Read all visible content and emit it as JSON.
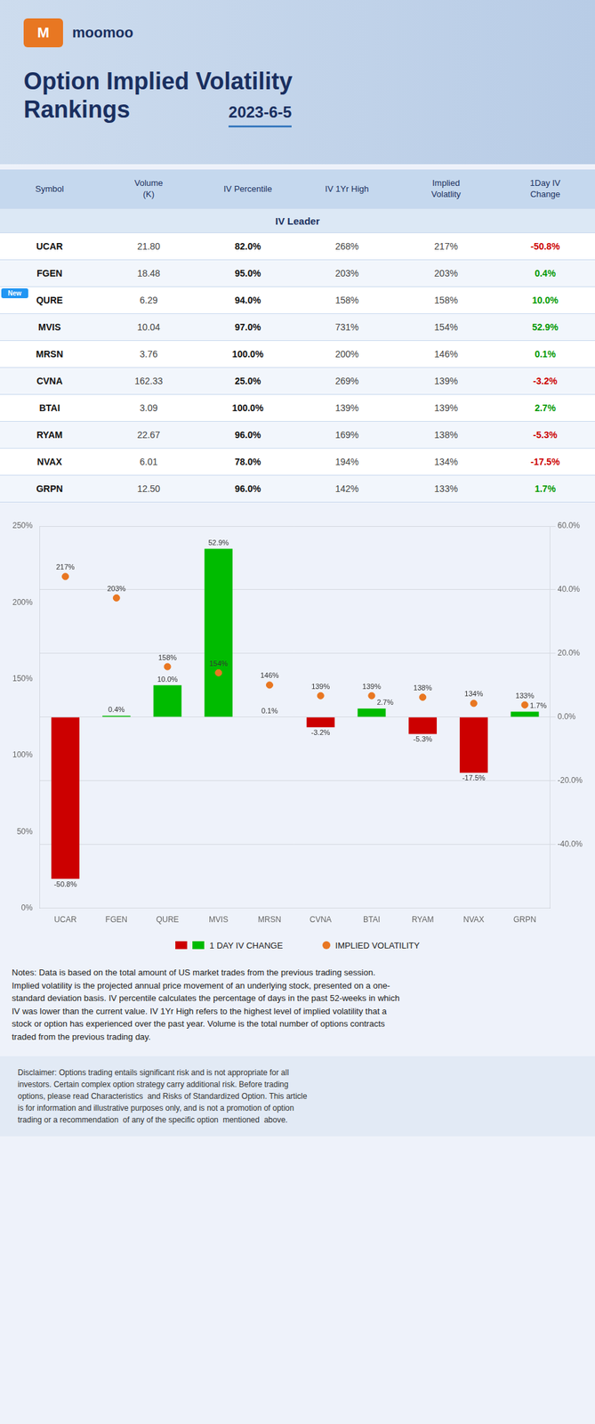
{
  "background": "#eef2fa",
  "header": {
    "logo_mark": "M",
    "brand": "moomoo",
    "title_line1": "Option Implied Volatility",
    "title_line2": "Rankings",
    "date": "2023-6-5"
  },
  "table": {
    "columns": [
      "Symbol",
      "Volume\n(K)",
      "IV Percentile",
      "IV 1Yr High",
      "Implied\nVolatlity",
      "1Day IV\nChange"
    ],
    "header_color": "#c5d8ee",
    "section_label": "IV Leader",
    "new_badge": "New",
    "positive_color": "#009900",
    "negative_color": "#cc0000",
    "rows": [
      {
        "symbol": "UCAR",
        "volume": "21.80",
        "iv_pct": "82.0%",
        "iv_1yr": "268%",
        "implied_vol": "217%",
        "change": "-50.8%",
        "change_val": -50.8,
        "row_bg": "#ffffff",
        "is_new": false
      },
      {
        "symbol": "FGEN",
        "volume": "18.48",
        "iv_pct": "95.0%",
        "iv_1yr": "203%",
        "implied_vol": "203%",
        "change": "0.4%",
        "change_val": 0.4,
        "row_bg": "#f2f6fc",
        "is_new": false
      },
      {
        "symbol": "QURE",
        "volume": "6.29",
        "iv_pct": "94.0%",
        "iv_1yr": "158%",
        "implied_vol": "158%",
        "change": "10.0%",
        "change_val": 10.0,
        "row_bg": "#ffffff",
        "is_new": true
      },
      {
        "symbol": "MVIS",
        "volume": "10.04",
        "iv_pct": "97.0%",
        "iv_1yr": "731%",
        "implied_vol": "154%",
        "change": "52.9%",
        "change_val": 52.9,
        "row_bg": "#f2f6fc",
        "is_new": false
      },
      {
        "symbol": "MRSN",
        "volume": "3.76",
        "iv_pct": "100.0%",
        "iv_1yr": "200%",
        "implied_vol": "146%",
        "change": "0.1%",
        "change_val": 0.1,
        "row_bg": "#ffffff",
        "is_new": false
      },
      {
        "symbol": "CVNA",
        "volume": "162.33",
        "iv_pct": "25.0%",
        "iv_1yr": "269%",
        "implied_vol": "139%",
        "change": "-3.2%",
        "change_val": -3.2,
        "row_bg": "#f2f6fc",
        "is_new": false
      },
      {
        "symbol": "BTAI",
        "volume": "3.09",
        "iv_pct": "100.0%",
        "iv_1yr": "139%",
        "implied_vol": "139%",
        "change": "2.7%",
        "change_val": 2.7,
        "row_bg": "#ffffff",
        "is_new": false
      },
      {
        "symbol": "RYAM",
        "volume": "22.67",
        "iv_pct": "96.0%",
        "iv_1yr": "169%",
        "implied_vol": "138%",
        "change": "-5.3%",
        "change_val": -5.3,
        "row_bg": "#f2f6fc",
        "is_new": false
      },
      {
        "symbol": "NVAX",
        "volume": "6.01",
        "iv_pct": "78.0%",
        "iv_1yr": "194%",
        "implied_vol": "134%",
        "change": "-17.5%",
        "change_val": -17.5,
        "row_bg": "#ffffff",
        "is_new": false
      },
      {
        "symbol": "GRPN",
        "volume": "12.50",
        "iv_pct": "96.0%",
        "iv_1yr": "142%",
        "implied_vol": "133%",
        "change": "1.7%",
        "change_val": 1.7,
        "row_bg": "#f2f6fc",
        "is_new": false
      }
    ]
  },
  "chart_data": {
    "type": "bar",
    "categories": [
      "UCAR",
      "FGEN",
      "QURE",
      "MVIS",
      "MRSN",
      "CVNA",
      "BTAI",
      "RYAM",
      "NVAX",
      "GRPN"
    ],
    "series": [
      {
        "name": "1 DAY IV CHANGE",
        "type": "bar",
        "axis": "y2",
        "values": [
          -50.8,
          0.4,
          10.0,
          52.9,
          0.1,
          -3.2,
          2.7,
          -5.3,
          -17.5,
          1.7
        ],
        "value_labels": [
          "-50.8%",
          "0.4%",
          "10.0%",
          "52.9%",
          "0.1%",
          "-3.2%",
          "2.7%",
          "-5.3%",
          "-17.5%",
          "1.7%"
        ],
        "colors": [
          "#cc0000",
          "#00bb00",
          "#00bb00",
          "#00bb00",
          "#00bb00",
          "#cc0000",
          "#00bb00",
          "#cc0000",
          "#cc0000",
          "#00bb00"
        ]
      },
      {
        "name": "IMPLIED VOLATILITY",
        "type": "scatter",
        "marker": "circle",
        "color": "#e87722",
        "values": [
          217,
          203,
          158,
          154,
          146,
          139,
          139,
          138,
          134,
          133
        ],
        "value_labels": [
          "217%",
          "203%",
          "158%",
          "154%",
          "146%",
          "139%",
          "139%",
          "138%",
          "134%",
          "133%"
        ]
      }
    ],
    "ylim": [
      0,
      250
    ],
    "yticks": [
      {
        "value": 0,
        "label": "0%"
      },
      {
        "value": 50,
        "label": "50%"
      },
      {
        "value": 100,
        "label": "100%"
      },
      {
        "value": 150,
        "label": "150%"
      },
      {
        "value": 200,
        "label": "200%"
      },
      {
        "value": 250,
        "label": "250%"
      }
    ],
    "y2lim": [
      -60,
      60
    ],
    "y2ticks": [
      {
        "value": -40,
        "label": "-40.0%"
      },
      {
        "value": -20,
        "label": "-20.0%"
      },
      {
        "value": 0,
        "label": "0.0%"
      },
      {
        "value": 20,
        "label": "20.0%"
      },
      {
        "value": 40,
        "label": "40.0%"
      },
      {
        "value": 60,
        "label": "60.0%"
      }
    ],
    "grid": true,
    "legend": "bottom",
    "data_labels": true
  },
  "notes": "Notes: Data is based on the total amount of US market trades from the previous trading session.\nImplied volatility is the projected annual price movement of an underlying stock, presented on a one-\nstandard deviation basis. IV percentile calculates the percentage of days in the past 52-weeks in which\nIV was lower than the current value. IV 1Yr High refers to the highest level of implied volatility that a\nstock or option has experienced over the past year. Volume is the total number of options contracts\ntraded from the previous trading day.",
  "disclaimer": "Disclaimer: Options trading entails significant risk and is not appropriate for all\ninvestors. Certain complex option strategy carry additional risk. Before trading\noptions, please read Characteristics  and Risks of Standardized Option. This article\nis for information and illustrative purposes only, and is not a promotion of option\ntrading or a recommendation  of any of the specific option  mentioned  above."
}
